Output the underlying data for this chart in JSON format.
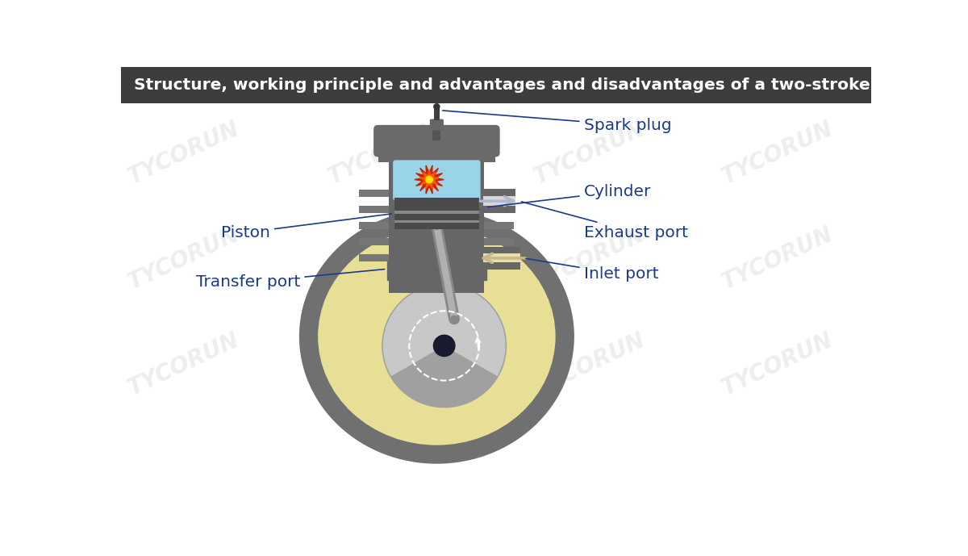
{
  "title": "Structure, working principle and advantages and disadvantages of a two-stroke engine",
  "title_bg": "#3d3d3d",
  "title_color": "#ffffff",
  "bg_color": "#ffffff",
  "label_color": "#1a3a8c",
  "watermark": "TYCORUN",
  "watermark_color": "#c8c8c8",
  "labels": {
    "spark_plug": "Spark plug",
    "cylinder": "Cylinder",
    "exhaust_port": "Exhaust port",
    "inlet_port": "Inlet port",
    "piston": "Piston",
    "transfer_port": "Transfer port"
  },
  "colors": {
    "cylinder_gray": "#666666",
    "cylinder_dark": "#555555",
    "fin_gray": "#777777",
    "head_gray": "#6a6a6a",
    "piston_dark": "#4a4a4a",
    "piston_ring": "#888888",
    "combustion_blue": "#99d4e8",
    "crankcase_outer": "#707070",
    "crankcase_yellow": "#e8df96",
    "crankcase_gray_inner": "#6a6a6a",
    "crankshaft_disk_light": "#c8c8c8",
    "crankshaft_disk_dark": "#a0a0a0",
    "crankshaft_hub": "#1a1a2e",
    "rod_gray": "#b0b0b0",
    "rod_dark": "#888888",
    "spark_dark": "#333333",
    "exhaust_arrow_color": "#b0b8cc",
    "inlet_arrow_color": "#c8b888",
    "explosion_red": "#cc2200",
    "explosion_orange": "#ff5500",
    "explosion_yellow": "#ffdd00"
  }
}
